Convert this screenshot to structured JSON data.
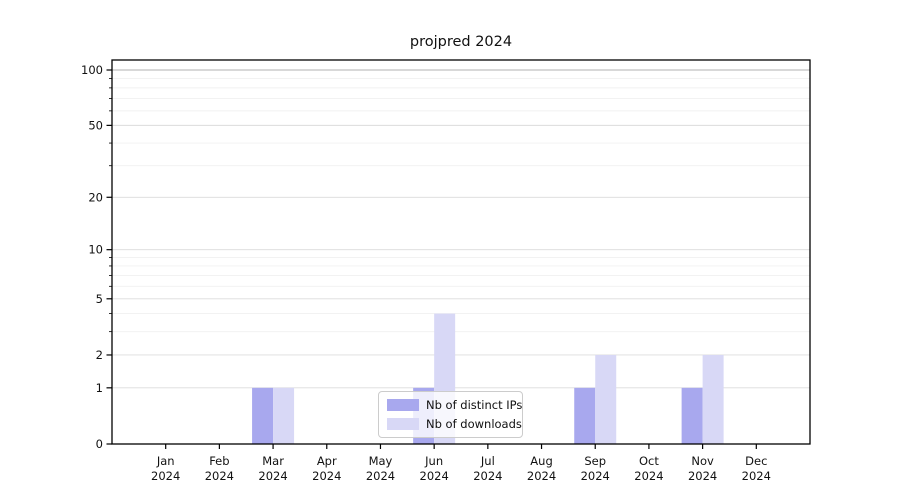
{
  "chart_data": {
    "type": "bar",
    "title": "projpred 2024",
    "categories": [
      "Jan",
      "Feb",
      "Mar",
      "Apr",
      "May",
      "Jun",
      "Jul",
      "Aug",
      "Sep",
      "Oct",
      "Nov",
      "Dec"
    ],
    "x_year_label": "2024",
    "series": [
      {
        "name": "Nb of distinct IPs",
        "color": "#a8a8ee",
        "values": [
          0,
          0,
          1,
          0,
          0,
          1,
          0,
          0,
          1,
          0,
          1,
          0
        ]
      },
      {
        "name": "Nb of downloads",
        "color": "#d8d8f6",
        "values": [
          0,
          0,
          1,
          0,
          0,
          4,
          0,
          0,
          2,
          0,
          2,
          0
        ]
      }
    ],
    "yscale": "log1p",
    "ylim": [
      0,
      113
    ],
    "y_major_ticks": [
      100,
      50,
      20,
      10,
      5,
      2,
      1,
      0
    ],
    "y_major_tick_labels": [
      "100",
      "50",
      "20",
      "10",
      "5",
      "2",
      "1",
      "0"
    ],
    "y_minor_ticks": [
      90,
      80,
      70,
      60,
      40,
      30,
      9,
      8,
      7,
      6,
      4,
      3
    ],
    "grid": "horizontal",
    "legend_position": "lower-center",
    "colors": {
      "background": "#ffffff",
      "axis": "#000000",
      "tick_text": "#111111",
      "grid_minor": "#f0f0f0",
      "grid_major": "#dcdcdc",
      "grid_top": "#b0b0b0",
      "legend_border": "#cccccc"
    }
  }
}
